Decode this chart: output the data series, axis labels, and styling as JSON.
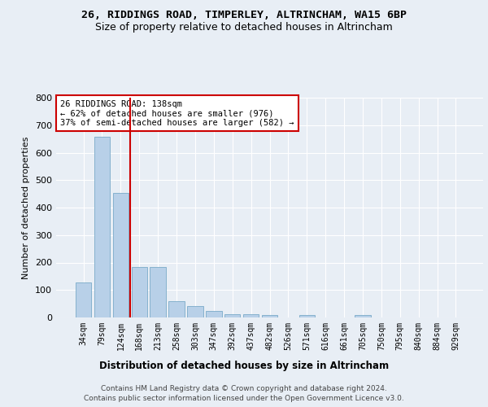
{
  "title1": "26, RIDDINGS ROAD, TIMPERLEY, ALTRINCHAM, WA15 6BP",
  "title2": "Size of property relative to detached houses in Altrincham",
  "xlabel": "Distribution of detached houses by size in Altrincham",
  "ylabel": "Number of detached properties",
  "bar_color": "#b8d0e8",
  "bar_edge_color": "#7aaac8",
  "vline_color": "#cc0000",
  "annotation_text": "26 RIDDINGS ROAD: 138sqm\n← 62% of detached houses are smaller (976)\n37% of semi-detached houses are larger (582) →",
  "annotation_box_color": "#ffffff",
  "annotation_box_edge": "#cc0000",
  "categories": [
    "34sqm",
    "79sqm",
    "124sqm",
    "168sqm",
    "213sqm",
    "258sqm",
    "303sqm",
    "347sqm",
    "392sqm",
    "437sqm",
    "482sqm",
    "526sqm",
    "571sqm",
    "616sqm",
    "661sqm",
    "705sqm",
    "750sqm",
    "795sqm",
    "840sqm",
    "884sqm",
    "929sqm"
  ],
  "values": [
    128,
    658,
    452,
    183,
    183,
    58,
    42,
    25,
    12,
    12,
    10,
    0,
    8,
    0,
    0,
    8,
    0,
    0,
    0,
    0,
    0
  ],
  "ylim": [
    0,
    800
  ],
  "yticks": [
    0,
    100,
    200,
    300,
    400,
    500,
    600,
    700,
    800
  ],
  "footnote1": "Contains HM Land Registry data © Crown copyright and database right 2024.",
  "footnote2": "Contains public sector information licensed under the Open Government Licence v3.0.",
  "bg_color": "#e8eef5",
  "plot_bg": "#e8eef5",
  "grid_color": "#ffffff",
  "title1_fontsize": 9.5,
  "title2_fontsize": 9
}
